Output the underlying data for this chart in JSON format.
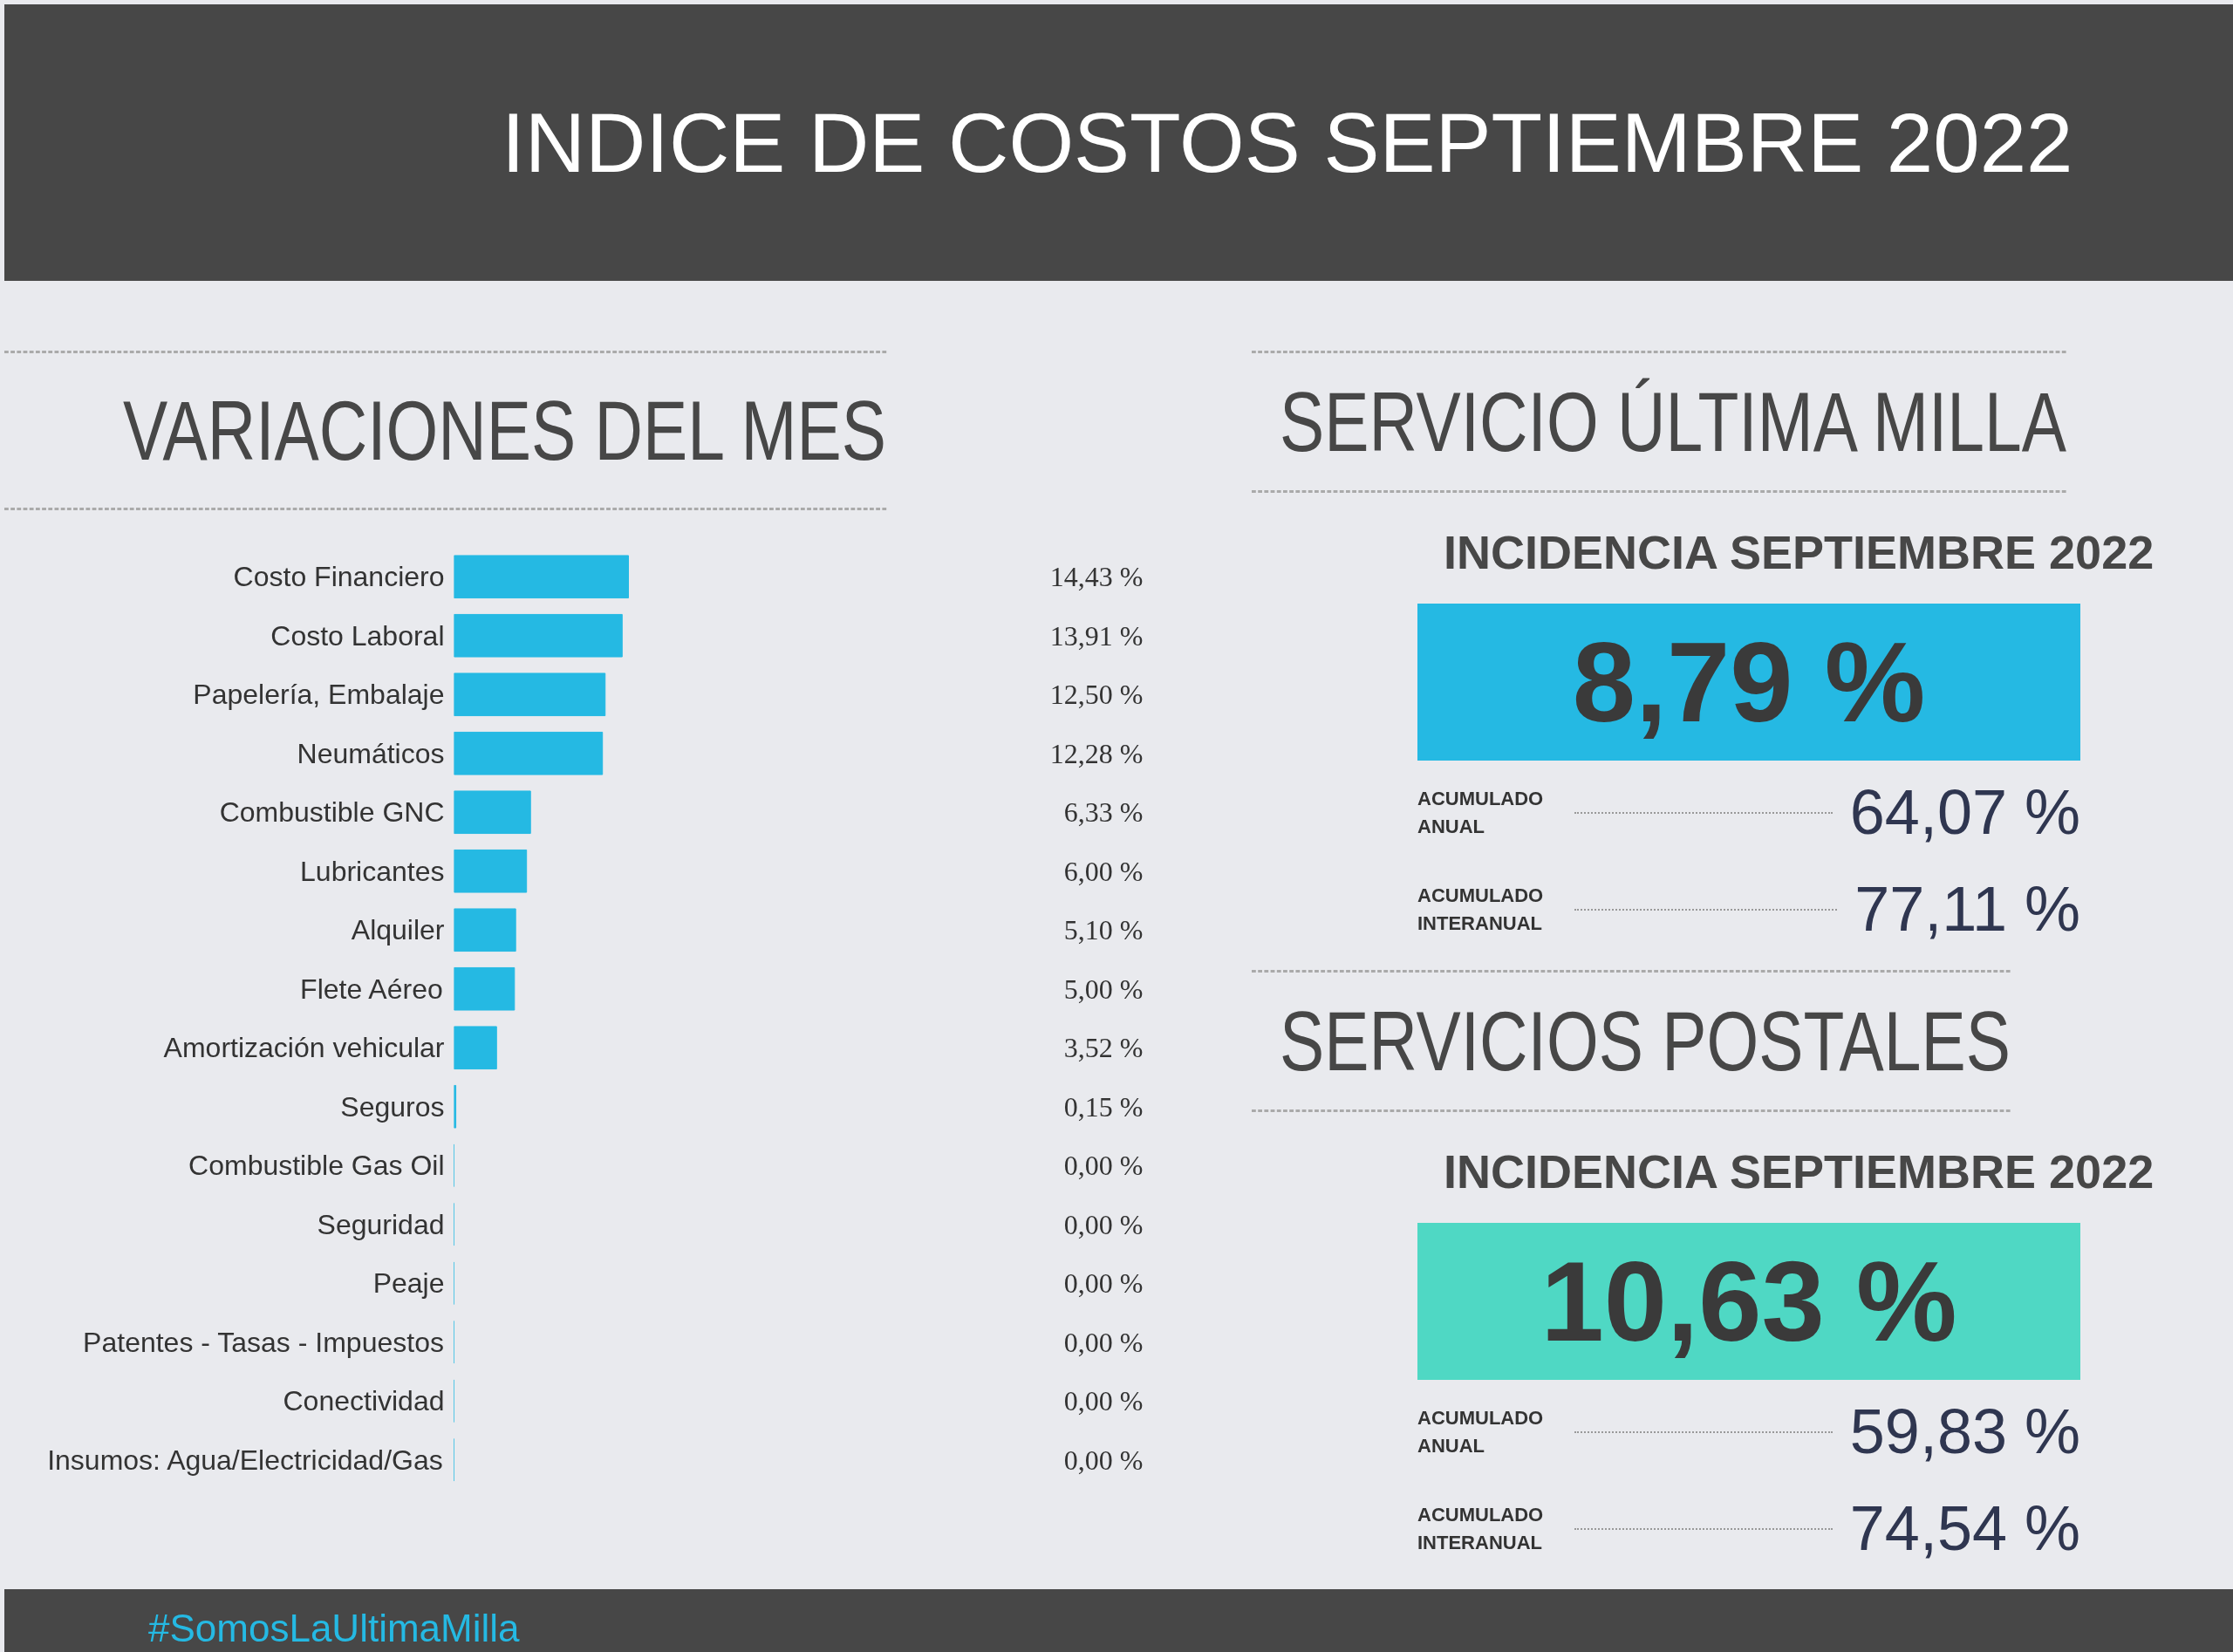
{
  "chart_data": [
    {
      "type": "bar",
      "orientation": "horizontal",
      "title": "INDICE DE COSTOS SEPTIEMBRE 2022",
      "subtitle": "VARIACIONES DEL MES",
      "categories": [
        "Costo Financiero",
        "Costo Laboral",
        "Papelería, Embalaje",
        "Neumáticos",
        "Combustible GNC",
        "Lubricantes",
        "Alquiler",
        "Flete Aéreo",
        "Amortización vehicular",
        "Seguros",
        "Combustible Gas Oil",
        "Seguridad",
        "Peaje",
        "Patentes - Tasas - Impuestos",
        "Conectividad",
        "Insumos: Agua/Electricidad/Gas"
      ],
      "values": [
        14.43,
        13.91,
        12.5,
        12.28,
        6.33,
        6.0,
        5.1,
        5.0,
        3.52,
        0.15,
        0,
        0,
        0,
        0,
        0,
        0
      ],
      "value_labels": [
        "14,43 %",
        "13,91 %",
        "12,50 %",
        "12,28 %",
        "6,33 %",
        "6,00 %",
        "5,10 %",
        "5,00 %",
        "3,52 %",
        "0,15 %",
        "0,00 %",
        "0,00 %",
        "0,00 %",
        "0,00 %",
        "0,00 %",
        "0,00 %"
      ],
      "color": "#25b9e3",
      "tick_labels": "y",
      "grid": false,
      "annotations": [
        "#SomosLaUltimaMilla"
      ]
    },
    {
      "type": "other",
      "title": "SERVICIO ÚLTIMA MILLA",
      "subtitle": "INCIDENCIA SEPTIEMBRE 2022",
      "categories": [
        null,
        "ACUMULADO ANUAL",
        "ACUMULADO INTERANUAL"
      ],
      "value_labels": [
        "8,79 %",
        "64,07 %",
        "77,11 %"
      ],
      "color": "#25b9e3"
    },
    {
      "type": "other",
      "title": "SERVICIOS POSTALES",
      "subtitle": "INCIDENCIA SEPTIEMBRE 2022",
      "categories": [
        null,
        "ACUMULADO ANUAL",
        "ACUMULADO INTERANUAL"
      ],
      "value_labels": [
        "10,63 %",
        "59,83 %",
        "74,54 %"
      ],
      "color": "#4fd8c4"
    }
  ]
}
